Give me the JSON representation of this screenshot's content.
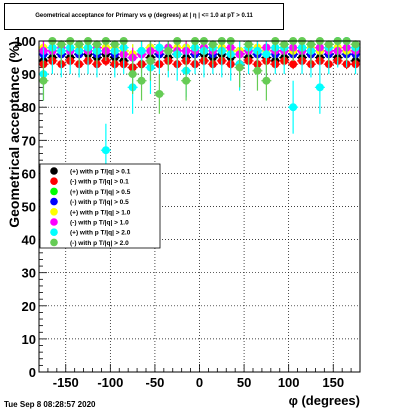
{
  "title": "Geometrical acceptance for Primary vs φ (degrees) at | η | <= 1.0 at pT > 0.11",
  "timestamp": "Tue Sep  8 08:28:57 2020",
  "colors": {
    "series_1": "#000000",
    "series_2": "#ff0000",
    "series_3": "#00ff00",
    "series_4": "#0000ff",
    "series_5": "#ffff00",
    "series_6": "#ff00ff",
    "series_7": "#00ffff",
    "series_8": "#66cc55"
  },
  "chart_data": {
    "type": "scatter",
    "title": "Geometrical acceptance for Primary vs φ (degrees) at | η | <= 1.0 at pT > 0.11",
    "xlabel": "φ (degrees)",
    "ylabel": "Geometrical acceptance (%)",
    "xlim": [
      -180,
      180
    ],
    "ylim": [
      0,
      100
    ],
    "xticks": [
      -150,
      -100,
      -50,
      0,
      50,
      100,
      150
    ],
    "yticks": [
      0,
      10,
      20,
      30,
      40,
      50,
      60,
      70,
      80,
      90,
      100
    ],
    "grid": true,
    "legend_position": "left-middle",
    "x": [
      -175,
      -165,
      -155,
      -145,
      -135,
      -125,
      -115,
      -105,
      -95,
      -85,
      -75,
      -65,
      -55,
      -45,
      -35,
      -25,
      -15,
      -5,
      5,
      15,
      25,
      35,
      45,
      55,
      65,
      75,
      85,
      95,
      105,
      115,
      125,
      135,
      145,
      155,
      165,
      175
    ],
    "series": [
      {
        "name": "(+) with p T/|q| > 0.1",
        "error_bar": 1.5,
        "values": [
          94,
          95,
          96,
          95,
          96,
          96,
          95,
          96,
          95,
          94,
          92,
          93,
          95,
          96,
          95,
          96,
          95,
          96,
          96,
          95,
          96,
          95,
          93,
          95,
          96,
          95,
          94,
          95,
          96,
          95,
          96,
          95,
          96,
          95,
          96,
          94
        ]
      },
      {
        "name": "(-) with p T/|q| > 0.1",
        "error_bar": 1.5,
        "values": [
          93,
          94,
          93,
          94,
          93,
          94,
          93,
          94,
          93,
          93,
          92,
          93,
          94,
          93,
          94,
          93,
          94,
          93,
          94,
          93,
          94,
          93,
          93,
          94,
          93,
          94,
          93,
          94,
          93,
          94,
          93,
          94,
          93,
          94,
          93,
          93
        ]
      },
      {
        "name": "(+) with p T/|q| > 0.5",
        "error_bar": 3,
        "values": [
          97,
          98,
          97,
          98,
          97,
          98,
          97,
          98,
          97,
          97,
          96,
          97,
          98,
          97,
          98,
          97,
          98,
          97,
          98,
          97,
          98,
          97,
          97,
          98,
          97,
          98,
          97,
          98,
          97,
          98,
          97,
          98,
          97,
          98,
          97,
          97
        ]
      },
      {
        "name": "(-) with p T/|q| > 0.5",
        "error_bar": 2,
        "values": [
          96,
          97,
          96,
          97,
          96,
          97,
          96,
          97,
          96,
          96,
          95,
          96,
          97,
          96,
          97,
          96,
          97,
          96,
          97,
          96,
          97,
          96,
          96,
          97,
          96,
          97,
          96,
          97,
          96,
          97,
          96,
          97,
          96,
          97,
          96,
          96
        ]
      },
      {
        "name": "(+) with p T/|q| > 1.0",
        "error_bar": 3,
        "values": [
          98,
          98,
          97,
          98,
          98,
          98,
          97,
          98,
          98,
          97,
          96,
          97,
          98,
          98,
          97,
          98,
          98,
          98,
          97,
          98,
          98,
          97,
          97,
          98,
          98,
          97,
          98,
          98,
          97,
          98,
          98,
          97,
          98,
          98,
          97,
          98
        ]
      },
      {
        "name": "(-) with p T/|q| > 1.0",
        "error_bar": 3,
        "values": [
          97,
          97,
          98,
          97,
          97,
          97,
          98,
          97,
          97,
          96,
          95,
          96,
          97,
          97,
          98,
          97,
          97,
          97,
          98,
          97,
          97,
          98,
          96,
          97,
          97,
          98,
          97,
          97,
          98,
          97,
          97,
          98,
          97,
          97,
          98,
          97
        ]
      },
      {
        "name": "(+) with p T/|q| > 2.0",
        "error_bar": 8,
        "values": [
          90,
          98,
          97,
          98,
          97,
          98,
          97,
          67,
          97,
          98,
          86,
          97,
          92,
          98,
          97,
          96,
          91,
          98,
          97,
          98,
          97,
          96,
          93,
          98,
          97,
          96,
          98,
          98,
          80,
          98,
          97,
          86,
          98,
          100,
          100,
          98
        ]
      },
      {
        "name": "(-) with p T/|q| > 2.0",
        "error_bar": 6,
        "values": [
          88,
          100,
          99,
          100,
          99,
          100,
          99,
          100,
          99,
          100,
          90,
          88,
          94,
          84,
          97,
          100,
          88,
          100,
          100,
          99,
          100,
          100,
          92,
          99,
          91,
          88,
          100,
          99,
          100,
          100,
          99,
          100,
          99,
          100,
          100,
          99
        ]
      }
    ]
  }
}
